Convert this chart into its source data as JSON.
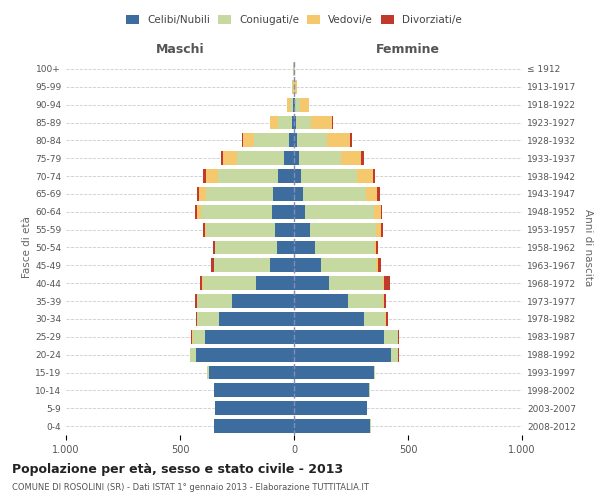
{
  "age_groups": [
    "0-4",
    "5-9",
    "10-14",
    "15-19",
    "20-24",
    "25-29",
    "30-34",
    "35-39",
    "40-44",
    "45-49",
    "50-54",
    "55-59",
    "60-64",
    "65-69",
    "70-74",
    "75-79",
    "80-84",
    "85-89",
    "90-94",
    "95-99",
    "100+"
  ],
  "birth_years": [
    "2008-2012",
    "2003-2007",
    "1998-2002",
    "1993-1997",
    "1988-1992",
    "1983-1987",
    "1978-1982",
    "1973-1977",
    "1968-1972",
    "1963-1967",
    "1958-1962",
    "1953-1957",
    "1948-1952",
    "1943-1947",
    "1938-1942",
    "1933-1937",
    "1928-1932",
    "1923-1927",
    "1918-1922",
    "1913-1917",
    "≤ 1912"
  ],
  "male_celibe": [
    350,
    345,
    350,
    375,
    430,
    390,
    330,
    270,
    165,
    105,
    75,
    85,
    95,
    90,
    70,
    45,
    20,
    10,
    4,
    2,
    2
  ],
  "male_coniugato": [
    1,
    2,
    3,
    5,
    25,
    55,
    95,
    155,
    235,
    245,
    270,
    300,
    315,
    295,
    265,
    205,
    155,
    60,
    15,
    3,
    1
  ],
  "male_vedovo": [
    0,
    0,
    0,
    0,
    1,
    1,
    1,
    2,
    2,
    3,
    3,
    5,
    15,
    30,
    50,
    60,
    50,
    35,
    10,
    2,
    0
  ],
  "male_divorziato": [
    0,
    0,
    0,
    0,
    2,
    5,
    6,
    8,
    10,
    10,
    8,
    10,
    10,
    12,
    12,
    10,
    5,
    2,
    0,
    0,
    0
  ],
  "female_celibe": [
    335,
    320,
    330,
    350,
    425,
    395,
    305,
    235,
    155,
    120,
    90,
    70,
    50,
    40,
    30,
    20,
    15,
    10,
    5,
    1,
    1
  ],
  "female_coniugata": [
    1,
    1,
    2,
    5,
    30,
    60,
    95,
    155,
    235,
    240,
    260,
    290,
    300,
    275,
    245,
    185,
    130,
    65,
    20,
    4,
    1
  ],
  "female_vedova": [
    0,
    0,
    0,
    0,
    1,
    2,
    2,
    3,
    5,
    8,
    10,
    20,
    30,
    50,
    70,
    90,
    100,
    90,
    40,
    8,
    2
  ],
  "female_divorziata": [
    0,
    0,
    0,
    0,
    3,
    5,
    10,
    12,
    25,
    15,
    10,
    10,
    8,
    10,
    12,
    10,
    8,
    5,
    2,
    0,
    0
  ],
  "color_celibe": "#3d6d9e",
  "color_coniugato": "#c5d9a0",
  "color_vedovo": "#f5c86e",
  "color_divorziato": "#c0392b",
  "title": "Popolazione per età, sesso e stato civile - 2013",
  "subtitle": "COMUNE DI ROSOLINI (SR) - Dati ISTAT 1° gennaio 2013 - Elaborazione TUTTITALIA.IT",
  "xlabel_left": "Maschi",
  "xlabel_right": "Femmine",
  "ylabel_left": "Fasce di età",
  "ylabel_right": "Anni di nascita",
  "xlim": 1000,
  "background_color": "#ffffff"
}
